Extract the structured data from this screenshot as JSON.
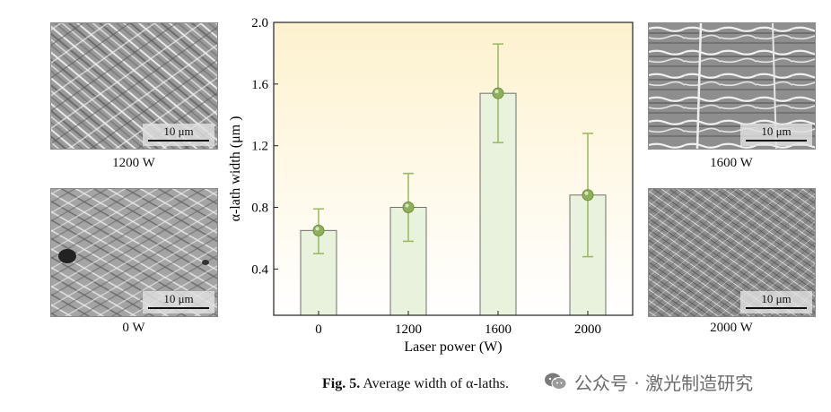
{
  "micrographs": [
    {
      "id": "1200",
      "caption": "1200 W",
      "scale_label": "10 μm"
    },
    {
      "id": "0",
      "caption": "0 W",
      "scale_label": "10 μm"
    },
    {
      "id": "1600",
      "caption": "1600 W",
      "scale_label": "10 μm"
    },
    {
      "id": "2000",
      "caption": "2000 W",
      "scale_label": "10 μm"
    }
  ],
  "chart_data": {
    "type": "bar",
    "title": "",
    "xlabel": "Laser power (W)",
    "ylabel": "α-lath width (μm )",
    "categories": [
      "0",
      "1200",
      "1600",
      "2000"
    ],
    "values": [
      0.65,
      0.8,
      1.54,
      0.88
    ],
    "error_low": [
      0.5,
      0.58,
      1.22,
      0.48
    ],
    "error_high": [
      0.79,
      1.02,
      1.86,
      1.28
    ],
    "ylim": [
      0.1,
      2.0
    ],
    "yticks": [
      0.4,
      0.8,
      1.2,
      1.6,
      2.0
    ],
    "ytick_labels": [
      "0.4",
      "0.8",
      "1.2",
      "1.6",
      "2.0"
    ],
    "colors": {
      "bar_fill": "#e9f2dc",
      "bar_edge": "#707070",
      "point": "#8fb05a",
      "errorbar": "#9dbb67",
      "bg_top": "#fdf2cf",
      "bg_bottom": "#ffffff"
    }
  },
  "figure_caption": {
    "label": "Fig. 5.",
    "text": "Average width of α-laths."
  },
  "watermark": {
    "icon": "wechat-icon",
    "text": "公众号 · 激光制造研究"
  }
}
